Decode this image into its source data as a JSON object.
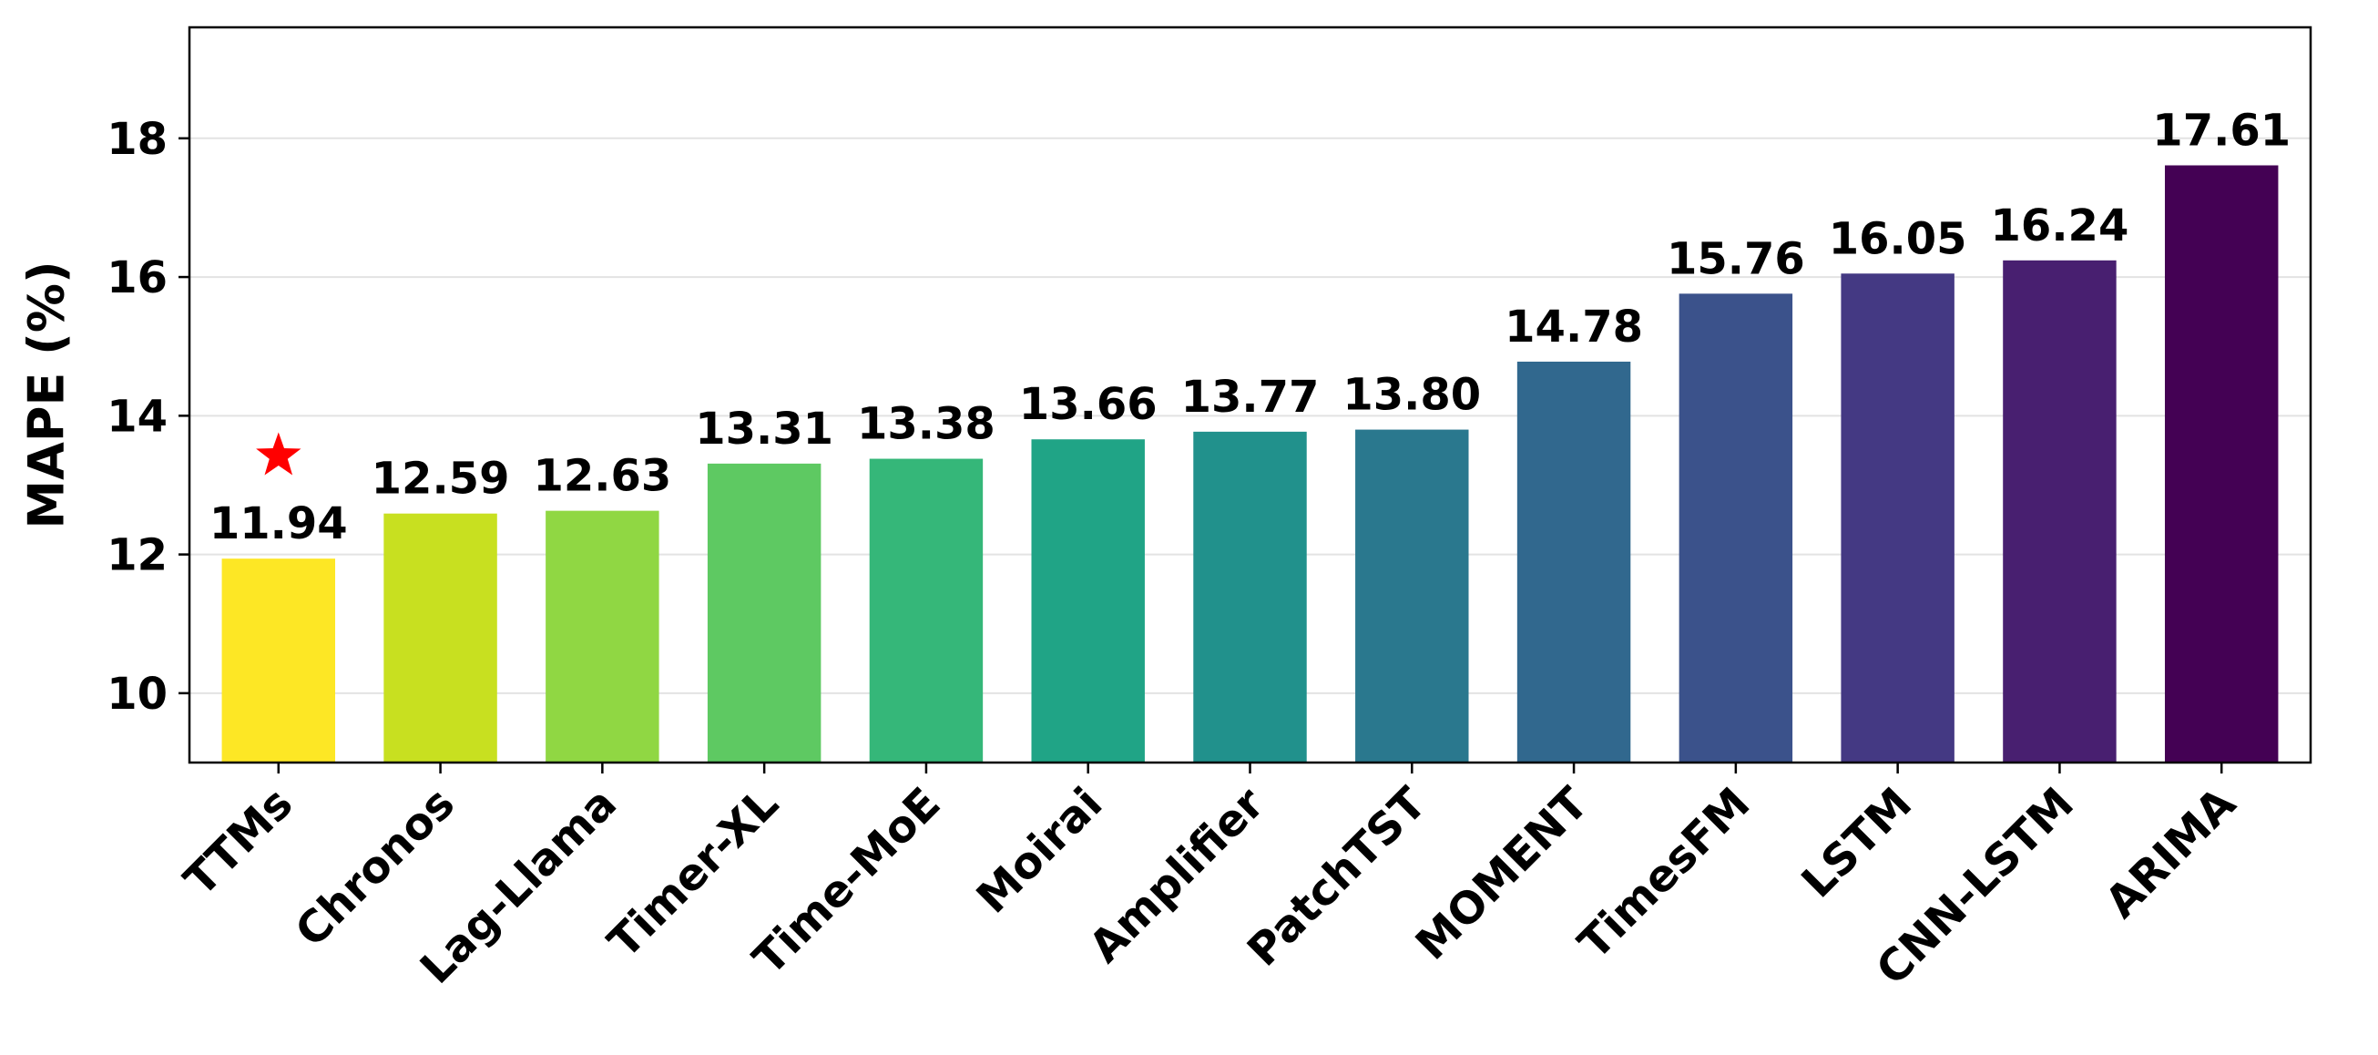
{
  "chart_data": {
    "type": "bar",
    "categories": [
      "TTMs",
      "Chronos",
      "Lag-Llama",
      "Timer-XL",
      "Time-MoE",
      "Moirai",
      "Amplifier",
      "PatchTST",
      "MOMENT",
      "TimesFM",
      "LSTM",
      "CNN-LSTM",
      "ARIMA"
    ],
    "values": [
      11.94,
      12.59,
      12.63,
      13.31,
      13.38,
      13.66,
      13.77,
      13.8,
      14.78,
      15.76,
      16.05,
      16.24,
      17.61
    ],
    "value_labels": [
      "11.94",
      "12.59",
      "12.63",
      "13.31",
      "13.38",
      "13.66",
      "13.77",
      "13.80",
      "14.78",
      "15.76",
      "16.05",
      "16.24",
      "17.61"
    ],
    "colors": [
      "#fde725",
      "#c8e020",
      "#90d743",
      "#5ec962",
      "#35b779",
      "#20a486",
      "#21918c",
      "#2a788e",
      "#31688e",
      "#3b528b",
      "#443983",
      "#481f70",
      "#440154"
    ],
    "title": "",
    "xlabel": "",
    "ylabel": "MAPE (%)",
    "ylim": [
      9,
      19.6
    ],
    "yticks": [
      10,
      12,
      14,
      16,
      18
    ],
    "ytick_labels": [
      "10",
      "12",
      "14",
      "16",
      "18"
    ],
    "grid": "horizontal",
    "x_tick_rotation_deg": 45,
    "highlight": {
      "category": "TTMs",
      "marker": "star",
      "color": "#ff0000",
      "y": 13.42
    }
  }
}
